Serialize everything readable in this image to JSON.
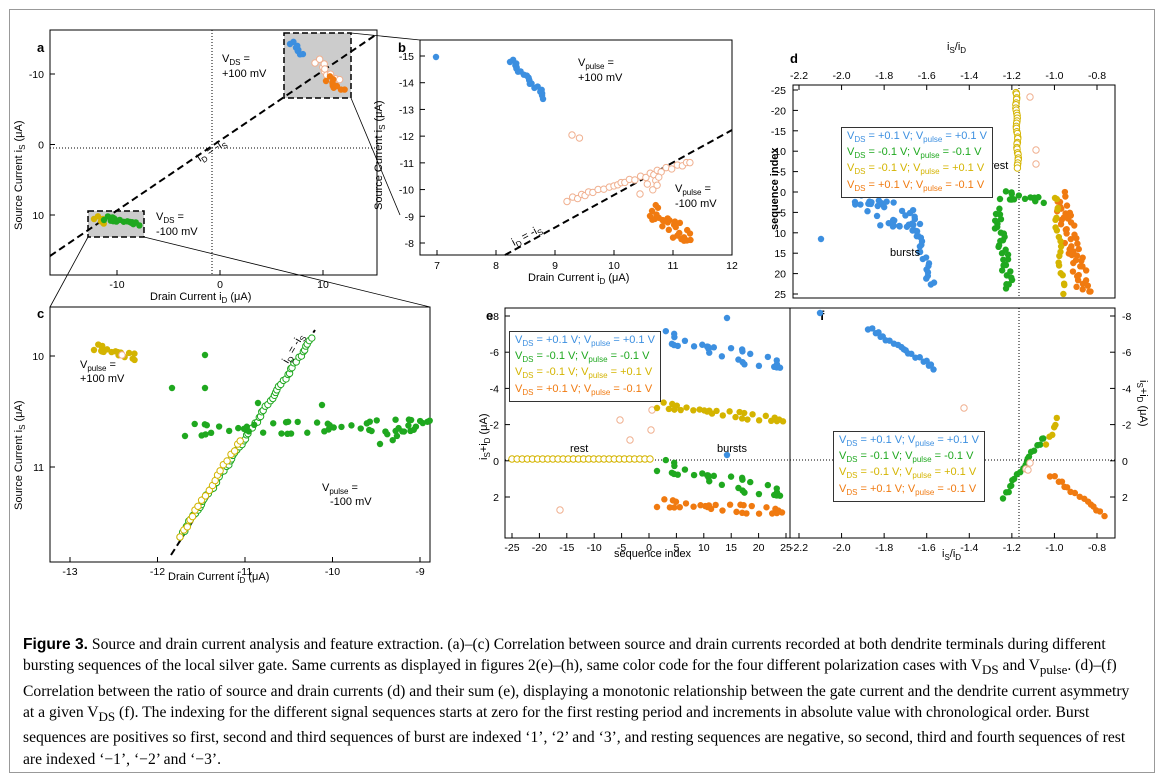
{
  "figure": {
    "panels": {
      "a": {
        "letter": "a",
        "xlabel": "Drain Current i",
        "xlabel_sub": "D",
        "xlabel_unit": " (μA)",
        "ylabel": "Source Current i",
        "ylabel_sub": "S",
        "ylabel_unit": " (μA)",
        "xticks": [
          "-10",
          "0",
          "10"
        ],
        "yticks": [
          "-10",
          "0",
          "10"
        ],
        "ann_vds_pos": "V",
        "ann_vds_pos_sub": "DS",
        "ann_vds_pos_tail": " =",
        "ann_vds_pos_val": "+100 mV",
        "ann_vds_neg": "V",
        "ann_vds_neg_sub": "DS",
        "ann_vds_neg_tail": " =",
        "ann_vds_neg_val": "-100 mV",
        "ann_line": "i",
        "ann_line_sub_d": "D",
        "ann_line_eq": " = -i",
        "ann_line_sub_s": "S"
      },
      "b": {
        "letter": "b",
        "xlabel": "Drain Current i",
        "xlabel_sub": "D",
        "xlabel_unit": " (μA)",
        "ylabel": "Source Current i",
        "ylabel_sub": "S",
        "ylabel_unit": " (μA)",
        "xticks": [
          "7",
          "8",
          "9",
          "10",
          "11",
          "12"
        ],
        "yticks": [
          "-15",
          "-14",
          "-13",
          "-12",
          "-11",
          "-10",
          "-9",
          "-8"
        ],
        "ann_pos": "V",
        "ann_pos_sub": "pulse",
        "ann_pos_tail": " =",
        "ann_pos_val": "+100 mV",
        "ann_neg": "V",
        "ann_neg_sub": "pulse",
        "ann_neg_tail": " =",
        "ann_neg_val": "-100 mV",
        "ann_line": "i",
        "ann_line_sub_d": "D",
        "ann_line_eq": " = -i",
        "ann_line_sub_s": "S"
      },
      "c": {
        "letter": "c",
        "xlabel": "Drain Current i",
        "xlabel_sub": "D",
        "xlabel_unit": " (μA)",
        "ylabel": "Source Current i",
        "ylabel_sub": "S",
        "ylabel_unit": " (μA)",
        "xticks": [
          "-13",
          "-12",
          "-11",
          "-10",
          "-9"
        ],
        "yticks": [
          "10",
          "11"
        ],
        "ann_pos": "V",
        "ann_pos_sub": "pulse",
        "ann_pos_tail": " =",
        "ann_pos_val": "+100 mV",
        "ann_neg": "V",
        "ann_neg_sub": "pulse",
        "ann_neg_tail": " =",
        "ann_neg_val": "-100 mV",
        "ann_line": "i",
        "ann_line_sub_d": "D",
        "ann_line_eq": " = -i",
        "ann_line_sub_s": "S"
      },
      "d": {
        "letter": "d",
        "top_label": "i",
        "top_sub_s": "S",
        "top_slash": "/i",
        "top_sub_d": "D",
        "ylabel": "sequence index",
        "xticks": [
          "-2.2",
          "-2.0",
          "-1.8",
          "-1.6",
          "-1.4",
          "-1.2",
          "-1.0",
          "-0.8"
        ],
        "yticks": [
          "-25",
          "-20",
          "-15",
          "-10",
          "-5",
          "0",
          "5",
          "10",
          "15",
          "20",
          "25"
        ],
        "ann_rest": "rest",
        "ann_bursts": "bursts"
      },
      "e": {
        "letter": "e",
        "xlabel": "sequence index",
        "ylabel": "i",
        "xticks": [
          "-25",
          "-20",
          "-15",
          "-10",
          "-5",
          "0",
          "5",
          "10",
          "15",
          "20",
          "25"
        ],
        "yticks": [
          "-8",
          "-6",
          "-4",
          "-2",
          "0",
          "2"
        ],
        "ann_rest": "rest",
        "ann_bursts": "bursts"
      },
      "f": {
        "letter": "f",
        "xlabel": "i",
        "xlabel_sub_s": "S",
        "xlabel_slash": "/i",
        "xlabel_sub_d": "D",
        "xticks": [
          "-2.2",
          "-2.0",
          "-1.8",
          "-1.6",
          "-1.4",
          "-1.2",
          "-1.0",
          "-0.8"
        ],
        "yticks": [
          "-8",
          "-6",
          "-4",
          "-2",
          "0",
          "2"
        ]
      }
    },
    "legend": [
      {
        "vds": "V",
        "vds_sub": "DS",
        "vds_val": " = +0.1 V; ",
        "vp": "V",
        "vp_sub": "pulse",
        "vp_val": " = +0.1 V",
        "color": "#3c8fe0"
      },
      {
        "vds": "V",
        "vds_sub": "DS",
        "vds_val": " = -0.1 V; ",
        "vp": "V",
        "vp_sub": "pulse",
        "vp_val": " = -0.1 V",
        "color": "#1fa81f"
      },
      {
        "vds": "V",
        "vds_sub": "DS",
        "vds_val": " = -0.1 V; ",
        "vp": "V",
        "vp_sub": "pulse",
        "vp_val": " = +0.1 V",
        "color": "#d4b400"
      },
      {
        "vds": "V",
        "vds_sub": "DS",
        "vds_val": " = +0.1 V; ",
        "vp": "V",
        "vp_sub": "pulse",
        "vp_val": " = -0.1 V",
        "color": "#f07a10"
      }
    ],
    "colors": {
      "blue": "#3c8fe0",
      "green": "#1fa81f",
      "yellow": "#d4b400",
      "orange": "#f07a10",
      "peach": "#f0b090",
      "gray_box": "#cccccc"
    }
  },
  "caption": {
    "label": "Figure 3.",
    "title": " Source and drain current analysis and feature extraction.",
    "body": " (a)–(c) Correlation between source and drain currents recorded at both dendrite terminals during different bursting sequences of the local silver gate. Same currents as displayed in figures 2(e)–(h), same color code for the four different polarization cases with V",
    "sub1": "DS",
    "mid1": " and V",
    "sub2": "pulse",
    "mid2": ". (d)–(f) Correlation between the ratio of source and drain currents (d) and their sum (e), displaying a monotonic relationship between the gate current and the dendrite current asymmetry at a given V",
    "sub3": "DS",
    "tail": " (f). The indexing for the different signal sequences starts at zero for the first resting period and increments in absolute value with chronological order. Burst sequences are positives so first, second and third sequences of burst are indexed ‘1’, ‘2’ and ‘3’, and resting sequences are negative, so second, third and fourth sequences of rest are indexed ‘−1’, ‘−2’ and ‘−3’."
  }
}
